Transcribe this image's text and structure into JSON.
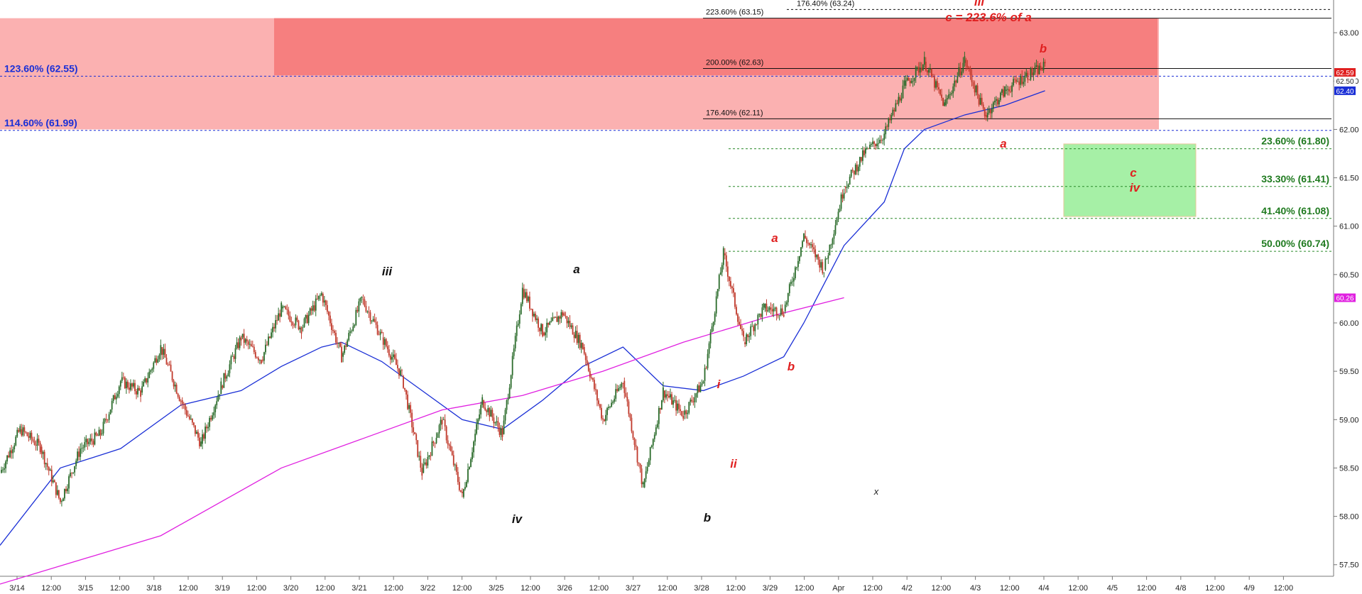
{
  "chart_data": {
    "type": "line",
    "title": "",
    "ylim": [
      57.4,
      63.35
    ],
    "x_tick_labels": [
      "3/14",
      "12:00",
      "3/15",
      "12:00",
      "3/18",
      "12:00",
      "3/19",
      "12:00",
      "3/20",
      "12:00",
      "3/21",
      "12:00",
      "3/22",
      "12:00",
      "3/25",
      "12:00",
      "3/26",
      "12:00",
      "3/27",
      "12:00",
      "3/28",
      "12:00",
      "3/29",
      "12:00",
      "Apr",
      "12:00",
      "4/2",
      "12:00",
      "4/3",
      "12:00",
      "4/4",
      "12:00",
      "4/5",
      "12:00",
      "4/8",
      "12:00",
      "4/9",
      "12:00"
    ],
    "y_ticks": [
      57.5,
      58.0,
      58.5,
      59.0,
      59.5,
      60.0,
      60.5,
      61.0,
      61.5,
      62.0,
      62.5,
      63.0
    ],
    "y_tick_labels": [
      "57.50",
      "58.00",
      "58.50",
      "59.00",
      "59.50",
      "60.00",
      "60.50",
      "61.00",
      "61.50",
      "62.00",
      "62.50",
      "63.00"
    ],
    "price_path": [
      [
        0,
        58.45
      ],
      [
        1,
        58.9
      ],
      [
        2,
        58.72
      ],
      [
        3,
        58.15
      ],
      [
        4,
        58.7
      ],
      [
        5,
        58.85
      ],
      [
        6,
        59.4
      ],
      [
        7,
        59.28
      ],
      [
        8,
        59.75
      ],
      [
        9,
        59.2
      ],
      [
        10,
        58.75
      ],
      [
        11,
        59.35
      ],
      [
        12,
        59.85
      ],
      [
        13,
        59.62
      ],
      [
        14,
        60.15
      ],
      [
        15,
        59.95
      ],
      [
        16,
        60.3
      ],
      [
        17,
        59.65
      ],
      [
        18,
        60.25
      ],
      [
        19,
        59.85
      ],
      [
        20,
        59.45
      ],
      [
        21,
        58.45
      ],
      [
        22,
        59.0
      ],
      [
        23,
        58.2
      ],
      [
        24,
        59.2
      ],
      [
        25,
        58.85
      ],
      [
        26,
        60.35
      ],
      [
        27,
        59.9
      ],
      [
        28,
        60.1
      ],
      [
        29,
        59.75
      ],
      [
        30,
        59.0
      ],
      [
        31,
        59.4
      ],
      [
        32,
        58.3
      ],
      [
        33,
        59.3
      ],
      [
        34,
        59.05
      ],
      [
        35,
        59.4
      ],
      [
        36,
        60.72
      ],
      [
        37,
        59.8
      ],
      [
        38,
        60.15
      ],
      [
        39,
        60.12
      ],
      [
        40,
        60.9
      ],
      [
        41,
        60.55
      ],
      [
        42,
        61.4
      ],
      [
        43,
        61.75
      ],
      [
        44,
        61.95
      ],
      [
        45,
        62.45
      ],
      [
        46,
        62.7
      ],
      [
        47,
        62.25
      ],
      [
        48,
        62.72
      ],
      [
        49,
        62.15
      ],
      [
        50,
        62.4
      ],
      [
        51,
        62.55
      ],
      [
        52,
        62.65
      ]
    ],
    "series": [
      {
        "name": "",
        "color": "#1a2fd6",
        "values": [
          [
            0,
            57.7
          ],
          [
            3,
            58.5
          ],
          [
            6,
            58.7
          ],
          [
            9,
            59.15
          ],
          [
            12,
            59.3
          ],
          [
            14,
            59.55
          ],
          [
            16,
            59.75
          ],
          [
            17,
            59.8
          ],
          [
            19,
            59.6
          ],
          [
            21,
            59.3
          ],
          [
            23,
            59.0
          ],
          [
            25,
            58.9
          ],
          [
            27,
            59.2
          ],
          [
            29,
            59.55
          ],
          [
            31,
            59.75
          ],
          [
            33,
            59.35
          ],
          [
            35,
            59.3
          ],
          [
            37,
            59.45
          ],
          [
            39,
            59.65
          ],
          [
            40,
            60.0
          ],
          [
            42,
            60.8
          ],
          [
            44,
            61.25
          ],
          [
            45,
            61.8
          ],
          [
            46,
            62.0
          ],
          [
            48,
            62.15
          ],
          [
            50,
            62.25
          ],
          [
            52,
            62.4
          ]
        ]
      },
      {
        "name": "",
        "color": "#e020e0",
        "values": [
          [
            0,
            57.3
          ],
          [
            8,
            57.8
          ],
          [
            14,
            58.5
          ],
          [
            18,
            58.8
          ],
          [
            22,
            59.1
          ],
          [
            26,
            59.25
          ],
          [
            30,
            59.5
          ],
          [
            34,
            59.8
          ],
          [
            38,
            60.05
          ],
          [
            42,
            60.26
          ]
        ]
      }
    ],
    "fib_lines_black": [
      {
        "label": "176.40% (63.24)",
        "value": 63.24
      },
      {
        "label": "223.60% (63.15)",
        "value": 63.15
      },
      {
        "label": "200.00% (62.63)",
        "value": 62.63
      },
      {
        "label": "176.40% (62.11)",
        "value": 62.11
      }
    ],
    "fib_lines_blue": [
      {
        "label": "123.60% (62.55)",
        "value": 62.55
      },
      {
        "label": "114.60% (61.99)",
        "value": 61.99
      }
    ],
    "fib_lines_green": [
      {
        "label": "23.60% (61.80)",
        "value": 61.8
      },
      {
        "label": "33.30% (61.41)",
        "value": 61.41
      },
      {
        "label": "41.40% (61.08)",
        "value": 61.08
      },
      {
        "label": "50.00% (60.74)",
        "value": 60.74
      }
    ],
    "price_badges": [
      {
        "label": "62.59",
        "value": 62.59,
        "color": "#e02020"
      },
      {
        "label": "62.50",
        "value": 62.5,
        "color": "#ffffff"
      },
      {
        "label": "62.40",
        "value": 62.4,
        "color": "#1a2fd6"
      },
      {
        "label": "60.26",
        "value": 60.26,
        "color": "#e020e0"
      }
    ],
    "wave_labels": [
      {
        "text": "iii",
        "color": "#111111"
      },
      {
        "text": "iv",
        "color": "#111111"
      },
      {
        "text": "a",
        "color": "#111111"
      },
      {
        "text": "b",
        "color": "#111111"
      },
      {
        "text": "i",
        "color": "#e02020"
      },
      {
        "text": "ii",
        "color": "#e02020"
      },
      {
        "text": "a",
        "color": "#e02020"
      },
      {
        "text": "b",
        "color": "#e02020"
      },
      {
        "text": "iii",
        "color": "#e02020"
      },
      {
        "text": "a",
        "color": "#e02020"
      },
      {
        "text": "b",
        "color": "#e02020"
      },
      {
        "text": "c",
        "color": "#e02020"
      },
      {
        "text": "iv",
        "color": "#e02020"
      }
    ],
    "annotation": "c = 223.6% of a",
    "marker": "x",
    "colors": {
      "up": "#2a6b2a",
      "down": "#c0392b",
      "zone_light": "#fbb1b1",
      "zone_dark": "#f67f7f",
      "zone_green": "#a6f0a6"
    }
  }
}
